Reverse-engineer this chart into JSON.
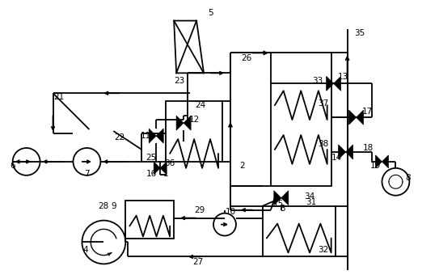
{
  "bg": "#ffffff",
  "lc": "#000000",
  "lw": 1.3,
  "fs": 7.5
}
